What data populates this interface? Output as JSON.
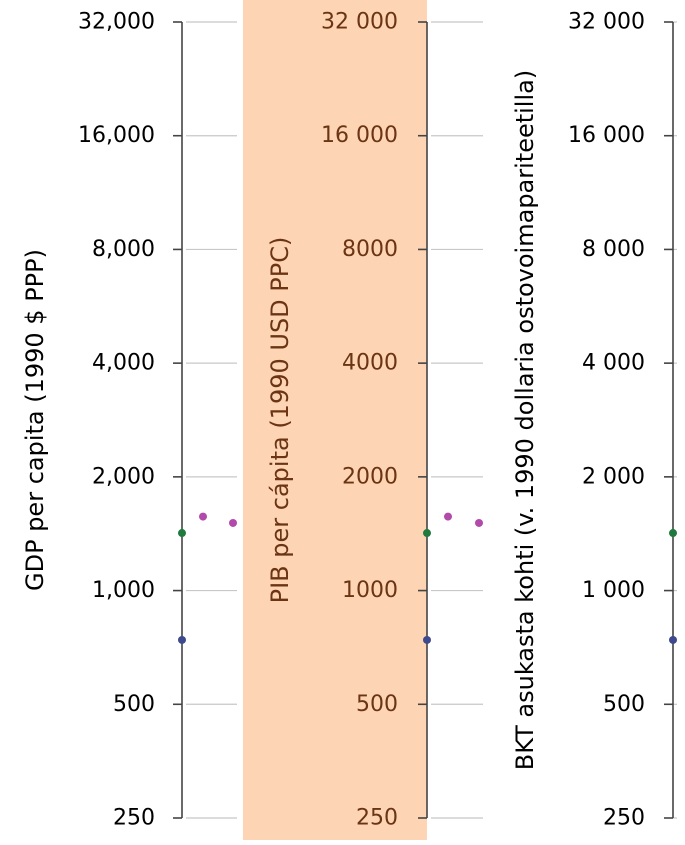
{
  "colors": {
    "axis": "#444444",
    "grid": "#c8c8c8",
    "text": "#000000",
    "highlight_band": "#fdd5b4",
    "highlight_text": "#6b3414",
    "green_point": "#1f7a3e",
    "blue_point": "#3e4a8c",
    "magenta_point": "#b24aab"
  },
  "chart_data": [
    {
      "type": "scatter",
      "ylabel": "GDP per capita (1990 $ PPP)",
      "yscale": "log2",
      "ylim": [
        250,
        32000
      ],
      "yticks": [
        250,
        500,
        1000,
        2000,
        4000,
        8000,
        16000,
        32000
      ],
      "ytick_labels": [
        "250",
        "500",
        "1,000",
        "2,000",
        "4,000",
        "8,000",
        "16,000",
        "32,000"
      ],
      "grid": true,
      "highlighted": false,
      "points": [
        {
          "y": 1420,
          "color": "green"
        },
        {
          "y": 740,
          "color": "blue"
        }
      ],
      "points_right": [
        {
          "y": 1570,
          "color": "magenta"
        },
        {
          "y": 1510,
          "color": "magenta"
        }
      ]
    },
    {
      "type": "scatter",
      "ylabel": "PIB per cápita (1990 USD PPC)",
      "yscale": "log2",
      "ylim": [
        250,
        32000
      ],
      "yticks": [
        250,
        500,
        1000,
        2000,
        4000,
        8000,
        16000,
        32000
      ],
      "ytick_labels": [
        "250",
        "500",
        "1000",
        "2000",
        "4000",
        "8000",
        "16 000",
        "32 000"
      ],
      "grid": true,
      "highlighted": true,
      "points": [
        {
          "y": 1420,
          "color": "green"
        },
        {
          "y": 740,
          "color": "blue"
        }
      ],
      "points_right": [
        {
          "y": 1570,
          "color": "magenta"
        },
        {
          "y": 1510,
          "color": "magenta"
        }
      ]
    },
    {
      "type": "scatter",
      "ylabel": "BKT asukasta kohti (v. 1990 dollaria ostovoimapariteetilla)",
      "yscale": "log2",
      "ylim": [
        250,
        32000
      ],
      "yticks": [
        250,
        500,
        1000,
        2000,
        4000,
        8000,
        16000,
        32000
      ],
      "ytick_labels": [
        "250",
        "500",
        "1 000",
        "2 000",
        "4 000",
        "8 000",
        "16 000",
        "32 000"
      ],
      "grid": true,
      "highlighted": false,
      "points": [
        {
          "y": 1420,
          "color": "green"
        },
        {
          "y": 740,
          "color": "blue"
        }
      ],
      "points_right": []
    }
  ]
}
